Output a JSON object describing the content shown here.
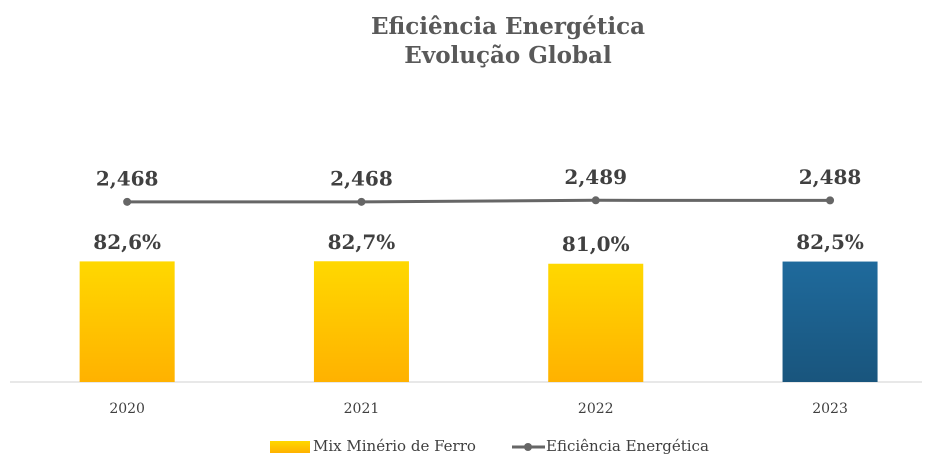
{
  "chart_data": {
    "type": "bar_line",
    "title": [
      "Eficiência Energética",
      "Evolução Global"
    ],
    "categories": [
      "2020",
      "2021",
      "2022",
      "2023"
    ],
    "series": [
      {
        "name": "Mix Minério de Ferro",
        "type": "bar",
        "colors": [
          "#ffd800",
          "#ffd800",
          "#ffd800",
          "#1f6a9c"
        ],
        "values": [
          82.6,
          82.7,
          81.0,
          82.5
        ],
        "value_labels": [
          "82,6%",
          "82,7%",
          "81,0%",
          "82,5%"
        ]
      },
      {
        "name": "Eficiência Energética",
        "type": "line",
        "axis": "y2",
        "color": "#666666",
        "values": [
          2.468,
          2.468,
          2.489,
          2.488
        ],
        "value_labels": [
          "2,468",
          "2,468",
          "2,489",
          "2,488"
        ]
      }
    ],
    "ylim": [
      0,
      200
    ],
    "y2lim": [
      0,
      4
    ]
  }
}
